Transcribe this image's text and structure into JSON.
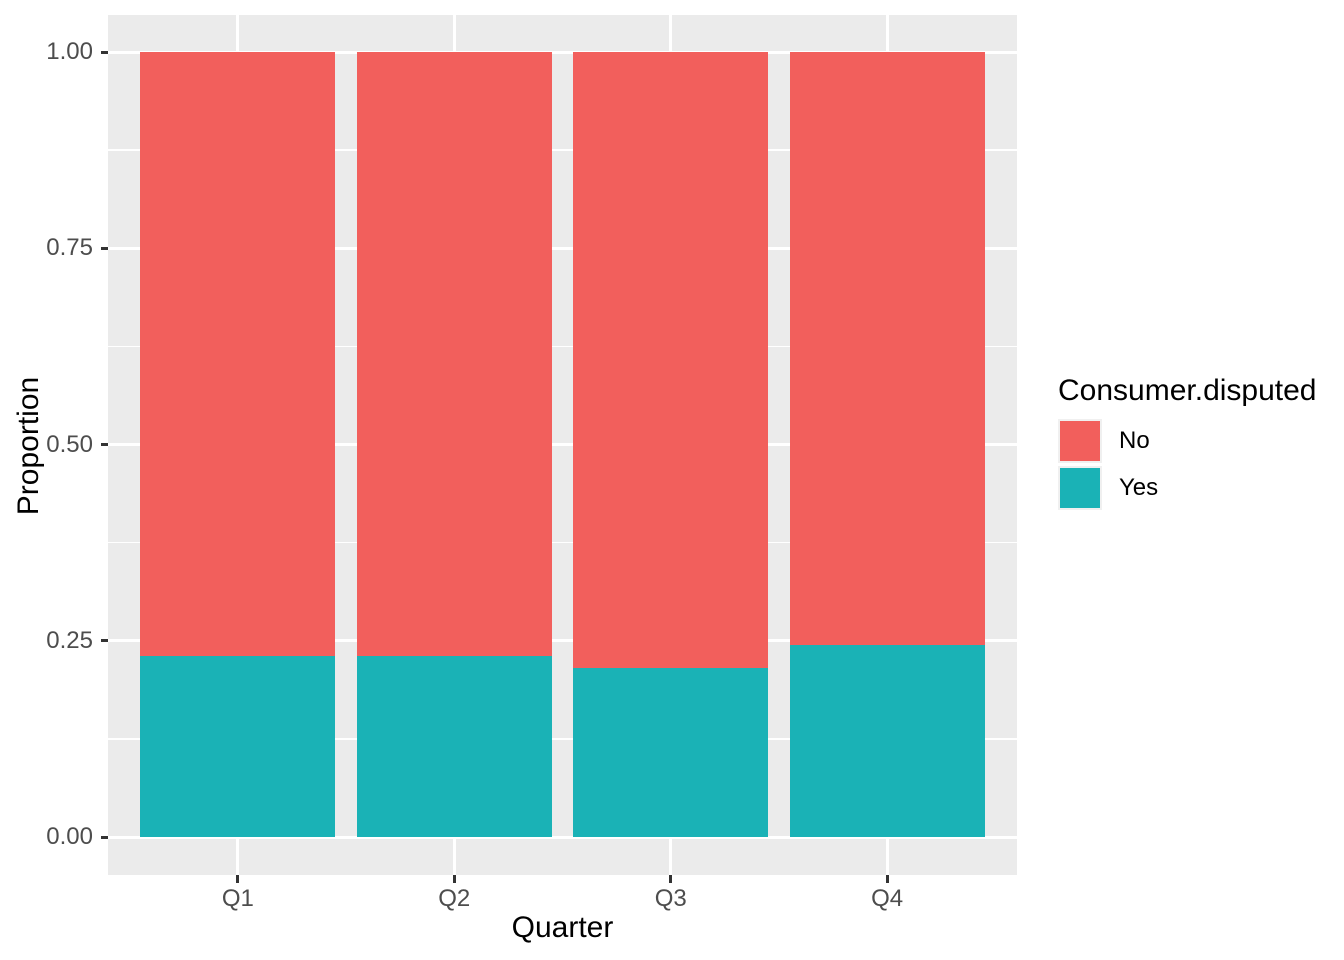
{
  "figure": {
    "background": "#FFFFFF",
    "panel_background": "#EBEBEB",
    "grid_color": "#FFFFFF",
    "tick_mark_color": "#333333",
    "tick_label_color": "#4D4D4D",
    "title_color": "#000000"
  },
  "chart_data": {
    "type": "bar",
    "subtype": "stacked_proportion",
    "title": "",
    "xlabel": "Quarter",
    "ylabel": "Proportion",
    "categories": [
      "Q1",
      "Q2",
      "Q3",
      "Q4"
    ],
    "series": [
      {
        "name": "Yes",
        "color": "#1AB2B6",
        "values": [
          0.231,
          0.23,
          0.215,
          0.245
        ]
      },
      {
        "name": "No",
        "color": "#F25F5C",
        "values": [
          0.769,
          0.77,
          0.785,
          0.755
        ]
      }
    ],
    "stack_order": "bottom_to_top",
    "ylim": [
      0,
      1
    ],
    "y_major_ticks": [
      0.0,
      0.25,
      0.5,
      0.75,
      1.0
    ],
    "y_tick_labels": [
      "0.00",
      "0.25",
      "0.50",
      "0.75",
      "1.00"
    ],
    "y_minor_ticks": [
      0.125,
      0.375,
      0.625,
      0.875
    ],
    "grid": true,
    "legend": {
      "title": "Consumer.disputed",
      "position": "right",
      "entries": [
        {
          "label": "No",
          "color": "#F25F5C"
        },
        {
          "label": "Yes",
          "color": "#1AB2B6"
        }
      ]
    }
  }
}
